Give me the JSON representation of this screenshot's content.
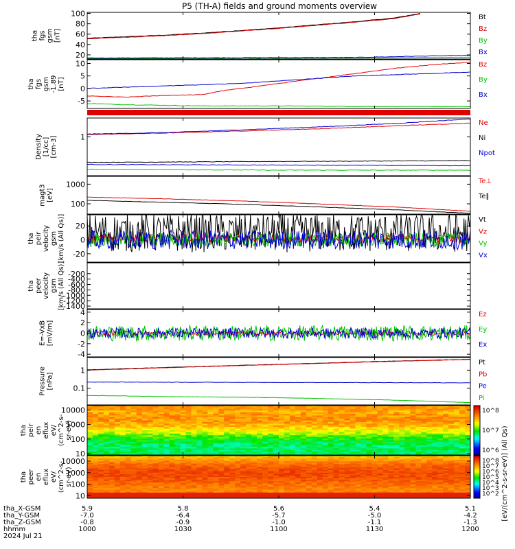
{
  "title": "P5 (TH-A) fields and ground moments overview",
  "colors": {
    "black": "#000000",
    "red": "#e00000",
    "green": "#00c000",
    "blue": "#0000d0"
  },
  "chart_data": [
    {
      "type": "line",
      "id": "fgs_gsm_mag",
      "ylabel": [
        "tha",
        "fgs",
        "gsm",
        "[nT]"
      ],
      "ylim": [
        12,
        102
      ],
      "yticks": [
        20,
        40,
        60,
        80,
        100
      ],
      "series": [
        {
          "name": "Bt",
          "color": "black",
          "points": [
            [
              0,
              52
            ],
            [
              0.1,
              55
            ],
            [
              0.2,
              58
            ],
            [
              0.3,
              62
            ],
            [
              0.4,
              67
            ],
            [
              0.5,
              72
            ],
            [
              0.6,
              78
            ],
            [
              0.7,
              84
            ],
            [
              0.8,
              91
            ],
            [
              0.87,
              100
            ]
          ]
        },
        {
          "name": "Bz",
          "color": "red",
          "points": [
            [
              0,
              51
            ],
            [
              0.1,
              54
            ],
            [
              0.2,
              57
            ],
            [
              0.3,
              61
            ],
            [
              0.4,
              66
            ],
            [
              0.5,
              71
            ],
            [
              0.6,
              77
            ],
            [
              0.7,
              83
            ],
            [
              0.8,
              90
            ],
            [
              0.87,
              99
            ]
          ]
        },
        {
          "name": "By",
          "color": "green",
          "points": [
            [
              0,
              13
            ],
            [
              0.3,
              13.5
            ],
            [
              0.6,
              14
            ],
            [
              0.9,
              15
            ],
            [
              1,
              15
            ]
          ]
        },
        {
          "name": "Bx",
          "color": "blue",
          "points": [
            [
              0,
              14
            ],
            [
              0.4,
              14.5
            ],
            [
              0.7,
              15
            ],
            [
              0.9,
              18
            ],
            [
              1,
              19
            ]
          ]
        }
      ]
    },
    {
      "type": "line",
      "id": "fgs_gsm_comp",
      "ylabel": [
        "tha",
        "fgs",
        "gsm",
        "-1.89",
        "[nT]"
      ],
      "ylim": [
        -8,
        11.5
      ],
      "yticks": [
        -5,
        0,
        5,
        10
      ],
      "series": [
        {
          "name": "Bz",
          "color": "red",
          "points": [
            [
              0,
              -3
            ],
            [
              0.1,
              -3.5
            ],
            [
              0.2,
              -2.8
            ],
            [
              0.3,
              -2.5
            ],
            [
              0.35,
              -1
            ],
            [
              0.45,
              1
            ],
            [
              0.5,
              2
            ],
            [
              0.6,
              4
            ],
            [
              0.7,
              6
            ],
            [
              0.8,
              8
            ],
            [
              0.9,
              9.5
            ],
            [
              1,
              10.5
            ]
          ]
        },
        {
          "name": "By",
          "color": "green",
          "points": [
            [
              0,
              -6
            ],
            [
              0.1,
              -6.5
            ],
            [
              0.3,
              -7
            ],
            [
              0.5,
              -7
            ],
            [
              0.7,
              -7.2
            ],
            [
              1,
              -7.3
            ]
          ]
        },
        {
          "name": "Bx",
          "color": "blue",
          "points": [
            [
              0,
              0
            ],
            [
              0.1,
              0.5
            ],
            [
              0.2,
              1
            ],
            [
              0.3,
              1.5
            ],
            [
              0.4,
              2
            ],
            [
              0.5,
              3
            ],
            [
              0.6,
              4
            ],
            [
              0.7,
              5
            ],
            [
              0.8,
              5.5
            ],
            [
              0.9,
              6
            ],
            [
              1,
              6.5
            ]
          ]
        }
      ]
    },
    {
      "type": "line",
      "id": "density",
      "ylabel": [
        "Density",
        "[1/cc]",
        "[cm-3]"
      ],
      "ylog": true,
      "ylim": [
        0.045,
        4.5
      ],
      "yticks": [
        1
      ],
      "series": [
        {
          "name": "Ne",
          "color": "red",
          "points": [
            [
              0,
              1.2
            ],
            [
              0.2,
              1.35
            ],
            [
              0.4,
              1.6
            ],
            [
              0.6,
              1.9
            ],
            [
              0.8,
              2.4
            ],
            [
              1,
              3.0
            ]
          ]
        },
        {
          "name": "Ni",
          "color": "black",
          "points": [
            [
              0,
              0.13
            ],
            [
              0.5,
              0.14
            ],
            [
              1,
              0.15
            ]
          ]
        },
        {
          "name": "Npot",
          "color": "blue",
          "points": [
            [
              0,
              1.25
            ],
            [
              0.2,
              1.4
            ],
            [
              0.4,
              1.75
            ],
            [
              0.6,
              2.2
            ],
            [
              0.8,
              2.9
            ],
            [
              1,
              4.2
            ]
          ]
        },
        {
          "name": "",
          "color": "blue",
          "points": [
            [
              0,
              0.11
            ],
            [
              0.5,
              0.105
            ],
            [
              1,
              0.1
            ]
          ]
        },
        {
          "name": "",
          "color": "green",
          "points": [
            [
              0,
              0.075
            ],
            [
              0.5,
              0.07
            ],
            [
              1,
              0.07
            ]
          ]
        }
      ]
    },
    {
      "type": "line",
      "id": "temperature",
      "ylabel": [
        "magt3",
        "[eV]"
      ],
      "ylog": true,
      "ylim": [
        30,
        2500
      ],
      "yticks": [
        100,
        1000
      ],
      "series": [
        {
          "name": "Te⊥",
          "color": "red",
          "points": [
            [
              0,
              220
            ],
            [
              0.2,
              180
            ],
            [
              0.4,
              140
            ],
            [
              0.6,
              100
            ],
            [
              0.8,
              70
            ],
            [
              1,
              42
            ]
          ]
        },
        {
          "name": "Te∥",
          "color": "black",
          "points": [
            [
              0,
              150
            ],
            [
              0.2,
              120
            ],
            [
              0.4,
              95
            ],
            [
              0.6,
              70
            ],
            [
              0.8,
              50
            ],
            [
              1,
              33
            ]
          ]
        }
      ]
    },
    {
      "type": "line",
      "id": "peir_velocity",
      "ylabel": [
        "tha",
        "peir",
        "velocity",
        "gsm",
        "[km/s (All Qs)]"
      ],
      "ylim": [
        -32,
        36
      ],
      "yticks": [
        -20,
        0,
        20
      ],
      "series": [
        {
          "name": "Vt",
          "color": "black",
          "amp": 28,
          "base": 10
        },
        {
          "name": "Vz",
          "color": "red",
          "amp": 6,
          "base": 2
        },
        {
          "name": "Vy",
          "color": "green",
          "amp": 10,
          "base": 0
        },
        {
          "name": "Vx",
          "color": "blue",
          "amp": 14,
          "base": 0
        }
      ]
    },
    {
      "type": "line",
      "id": "peer_velocity",
      "ylabel": [
        "tha",
        "peer",
        "velocity",
        "gsm",
        "[km/s (All Qs)]"
      ],
      "ylim": [
        -1500,
        200
      ],
      "yticks": [
        -1400,
        -1200,
        -1000,
        -800,
        -600,
        -400,
        -200
      ],
      "series": []
    },
    {
      "type": "line",
      "id": "efield",
      "ylabel": [
        "E=-VxB",
        "[mV/m]"
      ],
      "ylim": [
        -4.5,
        4.5
      ],
      "yticks": [
        -4,
        -2,
        0,
        2,
        4
      ],
      "series": [
        {
          "name": "Ez",
          "color": "red",
          "amp": 0.4,
          "base": 0
        },
        {
          "name": "Ey",
          "color": "green",
          "amp": 1.5,
          "base": 0
        },
        {
          "name": "Ex",
          "color": "blue",
          "amp": 1.0,
          "base": 0
        }
      ]
    },
    {
      "type": "line",
      "id": "pressure",
      "ylabel": [
        "Pressure",
        "[nPa]"
      ],
      "ylog": true,
      "ylim": [
        0.012,
        5
      ],
      "yticks": [
        0.1,
        1.0
      ],
      "series": [
        {
          "name": "Pt",
          "color": "black",
          "points": [
            [
              0,
              1.05
            ],
            [
              0.2,
              1.4
            ],
            [
              0.4,
              1.85
            ],
            [
              0.6,
              2.4
            ],
            [
              0.8,
              3.2
            ],
            [
              1,
              4.0
            ]
          ]
        },
        {
          "name": "Pb",
          "color": "red",
          "points": [
            [
              0,
              1.0
            ],
            [
              0.2,
              1.35
            ],
            [
              0.4,
              1.8
            ],
            [
              0.6,
              2.35
            ],
            [
              0.8,
              3.1
            ],
            [
              1,
              3.9
            ]
          ]
        },
        {
          "name": "Pe",
          "color": "blue",
          "points": [
            [
              0,
              0.22
            ],
            [
              0.5,
              0.21
            ],
            [
              1,
              0.2
            ]
          ]
        },
        {
          "name": "Pi",
          "color": "green",
          "points": [
            [
              0,
              0.04
            ],
            [
              0.2,
              0.035
            ],
            [
              0.5,
              0.03
            ],
            [
              0.8,
              0.022
            ],
            [
              1,
              0.016
            ]
          ]
        }
      ]
    },
    {
      "type": "heatmap",
      "id": "peir_en_eflux",
      "ylabel": [
        "tha",
        "peir",
        "en",
        "eflux",
        "eV/",
        "(cm^2-s-",
        "sr-eV)"
      ],
      "ylog": true,
      "ylim": [
        8,
        20000
      ],
      "yticks": [
        10,
        100,
        1000,
        10000
      ],
      "colorbar_label": "[eV/(cm^2-s-sr-eV)] (All Qs)",
      "colorbar_ticks": [
        "10^8",
        "10^7",
        "10^6"
      ]
    },
    {
      "type": "heatmap",
      "id": "peer_en_eflux",
      "ylabel": [
        "tha",
        "peer",
        "en",
        "eflux",
        "eV/",
        "(cm^2-s-",
        "sr-eV)"
      ],
      "ylog": true,
      "ylim": [
        6,
        30000
      ],
      "yticks": [
        10,
        100,
        1000,
        10000
      ],
      "colorbar_label": "[eV/(cm^2-s-sr-eV)] (All Qs)",
      "colorbar_ticks": [
        "10^8",
        "10^7",
        "10^6",
        "10^5",
        "10^4",
        "10^3",
        "10^2"
      ]
    }
  ],
  "x_axis": {
    "rows": [
      {
        "label": "tha_X-GSM",
        "values": [
          "5.9",
          "5.8",
          "5.6",
          "5.4",
          "5.1"
        ]
      },
      {
        "label": "tha_Y-GSM",
        "values": [
          "-7.0",
          "-6.4",
          "-5.7",
          "-5.0",
          "-4.2"
        ]
      },
      {
        "label": "tha_Z-GSM",
        "values": [
          "-0.8",
          "-0.9",
          "-1.0",
          "-1.1",
          "-1.3"
        ]
      },
      {
        "label": "hhmm",
        "values": [
          "1000",
          "1030",
          "1100",
          "1130",
          "1200"
        ]
      }
    ],
    "date": "2024 Jul 21",
    "extra_tick": "-1.3"
  }
}
